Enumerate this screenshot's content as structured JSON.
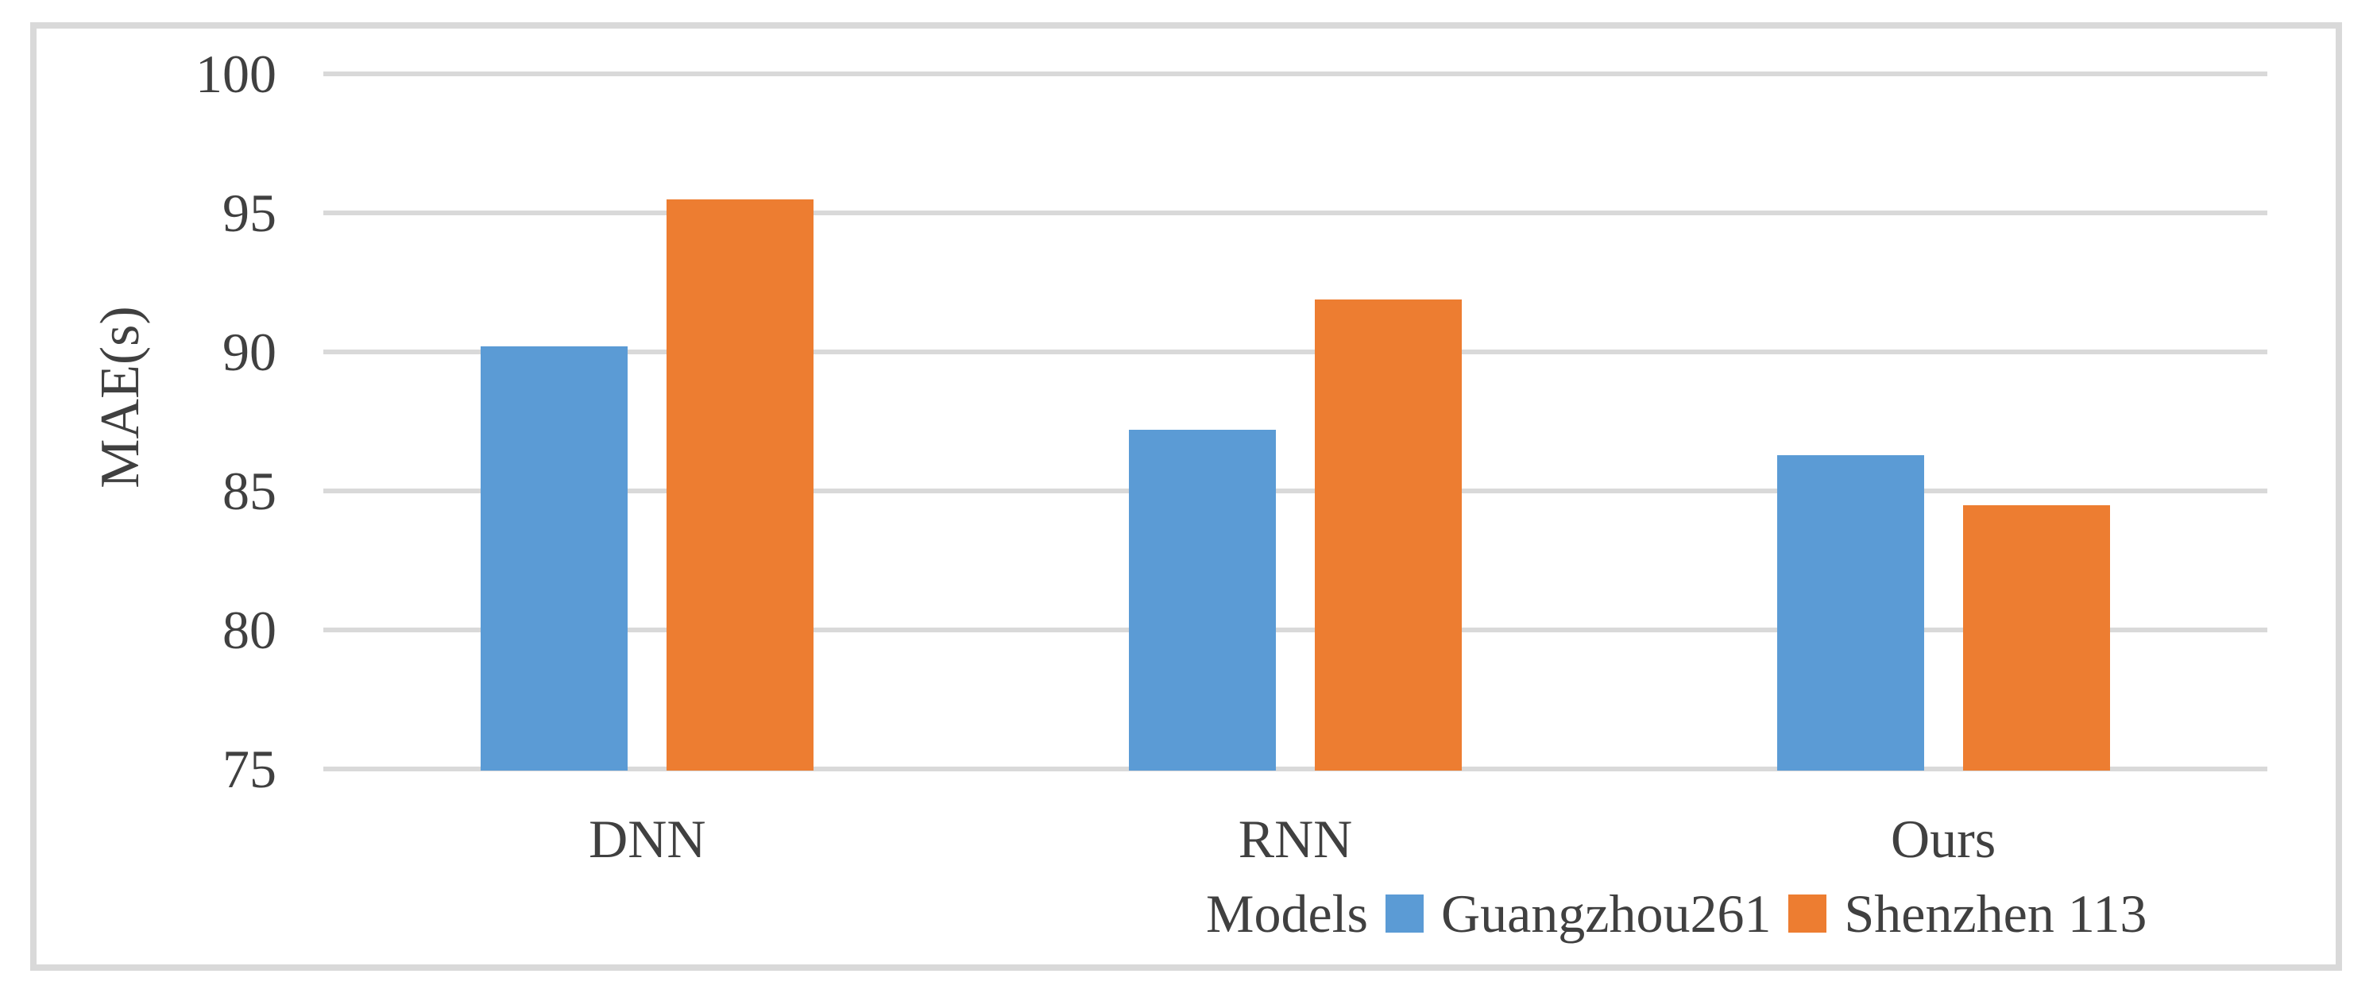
{
  "chart_data": {
    "type": "bar",
    "title": "",
    "categories": [
      "DNN",
      "RNN",
      "Ours"
    ],
    "series": [
      {
        "name": "Guangzhou261",
        "color": "#5B9BD5",
        "values": [
          90.2,
          87.2,
          86.3
        ]
      },
      {
        "name": "Shenzhen 113",
        "color": "#ED7D31",
        "values": [
          95.5,
          91.9,
          84.5
        ]
      }
    ],
    "xlabel": "Models",
    "ylabel": "MAE(s)",
    "ylim": [
      75,
      100
    ],
    "yticks": [
      75,
      80,
      85,
      90,
      95,
      100
    ],
    "grid": true,
    "legend_position": "bottom-right",
    "colors": {
      "gridline": "#D9D9D9",
      "frame_border": "#D9D9D9",
      "text": "#404040",
      "background": "#FFFFFF"
    }
  }
}
